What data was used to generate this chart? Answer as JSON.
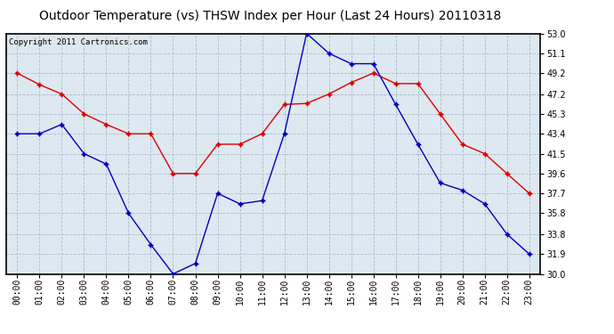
{
  "title": "Outdoor Temperature (vs) THSW Index per Hour (Last 24 Hours) 20110318",
  "copyright_text": "Copyright 2011 Cartronics.com",
  "hours": [
    "00:00",
    "01:00",
    "02:00",
    "03:00",
    "04:00",
    "05:00",
    "06:00",
    "07:00",
    "08:00",
    "09:00",
    "10:00",
    "11:00",
    "12:00",
    "13:00",
    "14:00",
    "15:00",
    "16:00",
    "17:00",
    "18:00",
    "19:00",
    "20:00",
    "21:00",
    "22:00",
    "23:00"
  ],
  "red_data": [
    49.2,
    48.1,
    47.2,
    45.3,
    44.3,
    43.4,
    43.4,
    39.6,
    39.6,
    42.4,
    42.4,
    43.4,
    46.2,
    46.3,
    47.2,
    48.3,
    49.2,
    48.2,
    48.2,
    45.3,
    42.4,
    41.5,
    39.6,
    37.7
  ],
  "blue_data": [
    43.4,
    43.4,
    44.3,
    41.5,
    40.5,
    35.8,
    32.8,
    30.0,
    31.0,
    37.7,
    36.7,
    37.0,
    43.4,
    53.0,
    51.1,
    50.1,
    50.1,
    46.2,
    42.4,
    38.7,
    38.0,
    36.7,
    33.8,
    31.9
  ],
  "ylim": [
    30.0,
    53.0
  ],
  "yticks": [
    53.0,
    51.1,
    49.2,
    47.2,
    45.3,
    43.4,
    41.5,
    39.6,
    37.7,
    35.8,
    33.8,
    31.9,
    30.0
  ],
  "red_color": "#dd0000",
  "blue_color": "#0000bb",
  "bg_color": "#ffffff",
  "plot_bg_color": "#dde8f0",
  "grid_color": "#aabbcc",
  "title_fontsize": 10,
  "tick_fontsize": 7,
  "copyright_fontsize": 6.5
}
